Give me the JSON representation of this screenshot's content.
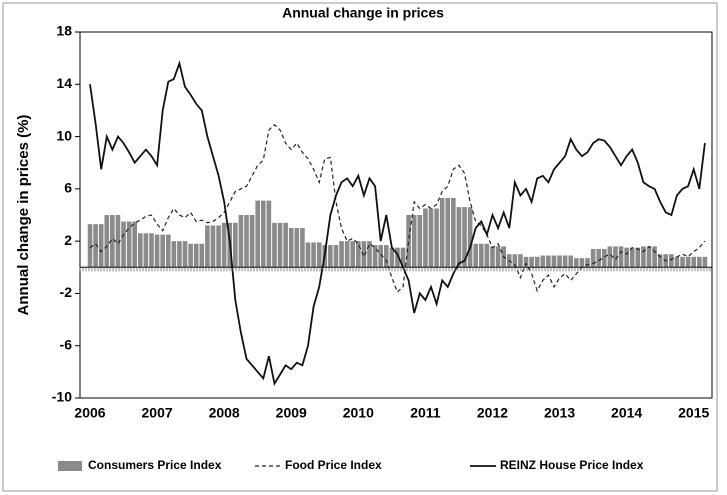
{
  "chart_data": {
    "type": "bar-line",
    "title": "Annual change in prices",
    "ylabel": "Annual change in prices (%)",
    "ylim": [
      -10,
      18
    ],
    "yticks": [
      -10,
      -6,
      -2,
      2,
      6,
      10,
      14,
      18
    ],
    "categories": [
      "2006",
      null,
      null,
      null,
      null,
      null,
      null,
      null,
      null,
      null,
      null,
      null,
      "2007",
      null,
      null,
      null,
      null,
      null,
      null,
      null,
      null,
      null,
      null,
      null,
      "2008",
      null,
      null,
      null,
      null,
      null,
      null,
      null,
      null,
      null,
      null,
      null,
      "2009",
      null,
      null,
      null,
      null,
      null,
      null,
      null,
      null,
      null,
      null,
      null,
      "2010",
      null,
      null,
      null,
      null,
      null,
      null,
      null,
      null,
      null,
      null,
      null,
      "2011",
      null,
      null,
      null,
      null,
      null,
      null,
      null,
      null,
      null,
      null,
      null,
      "2012",
      null,
      null,
      null,
      null,
      null,
      null,
      null,
      null,
      null,
      null,
      null,
      "2013",
      null,
      null,
      null,
      null,
      null,
      null,
      null,
      null,
      null,
      null,
      null,
      "2014",
      null,
      null,
      null,
      null,
      null,
      null,
      null,
      null,
      null,
      null,
      null,
      "2015",
      null,
      null
    ],
    "series": [
      {
        "name": "Consumers Price Index",
        "kind": "bar",
        "color": "#8a8a8a",
        "values": [
          3.3,
          3.3,
          3.3,
          4.0,
          4.0,
          4.0,
          3.5,
          3.5,
          3.5,
          2.6,
          2.6,
          2.6,
          2.5,
          2.5,
          2.5,
          2.0,
          2.0,
          2.0,
          1.8,
          1.8,
          1.8,
          3.2,
          3.2,
          3.2,
          3.4,
          3.4,
          3.4,
          4.0,
          4.0,
          4.0,
          5.1,
          5.1,
          5.1,
          3.4,
          3.4,
          3.4,
          3.0,
          3.0,
          3.0,
          1.9,
          1.9,
          1.9,
          1.7,
          1.7,
          1.7,
          2.0,
          2.0,
          2.0,
          2.0,
          2.0,
          2.0,
          1.7,
          1.7,
          1.7,
          1.5,
          1.5,
          1.5,
          4.0,
          4.0,
          4.0,
          4.5,
          4.5,
          4.5,
          5.3,
          5.3,
          5.3,
          4.6,
          4.6,
          4.6,
          1.8,
          1.8,
          1.8,
          1.6,
          1.6,
          1.6,
          1.0,
          1.0,
          1.0,
          0.8,
          0.8,
          0.8,
          0.9,
          0.9,
          0.9,
          0.9,
          0.9,
          0.9,
          0.7,
          0.7,
          0.7,
          1.4,
          1.4,
          1.4,
          1.6,
          1.6,
          1.6,
          1.5,
          1.5,
          1.5,
          1.6,
          1.6,
          1.6,
          1.0,
          1.0,
          1.0,
          0.8,
          0.8,
          0.8,
          0.8,
          0.8,
          0.8
        ]
      },
      {
        "name": "Food Price Index",
        "kind": "line",
        "dashed": true,
        "color": "#222222",
        "values": [
          1.5,
          1.8,
          1.2,
          1.6,
          2.2,
          1.8,
          2.5,
          3,
          3.4,
          3.6,
          3.9,
          4,
          3.3,
          2.8,
          3.8,
          4.5,
          4,
          3.8,
          4.2,
          3.5,
          3.6,
          3.4,
          3.5,
          3.8,
          4.2,
          5,
          5.8,
          6,
          6.2,
          7,
          7.8,
          8.2,
          10.5,
          10.9,
          10.5,
          9.5,
          9,
          9.5,
          8.8,
          8.3,
          7.5,
          6.5,
          8.3,
          8.4,
          5,
          3,
          2,
          2.2,
          1.8,
          0.8,
          1.8,
          1.5,
          1,
          0.5,
          -0.8,
          -1.9,
          -1.5,
          2,
          5,
          4.5,
          4.8,
          4.5,
          4.8,
          5.8,
          6.2,
          7.5,
          7.8,
          7.2,
          5,
          3.5,
          3.2,
          2.5,
          1.5,
          1.8,
          0.8,
          0.5,
          0.2,
          -0.8,
          0.3,
          -0.5,
          -1.8,
          -1,
          -0.6,
          -1.5,
          -0.8,
          -0.5,
          -1,
          -0.5,
          0,
          0.2,
          0.3,
          0.5,
          0.8,
          1,
          0.6,
          1.2,
          1,
          1.5,
          1.4,
          1.2,
          1.6,
          1.2,
          0.8,
          0.5,
          0.6,
          0.8,
          1,
          0.8,
          1.2,
          1.5,
          2
        ]
      },
      {
        "name": "REINZ House Price Index",
        "kind": "line",
        "dashed": false,
        "color": "#111111",
        "values": [
          14,
          11,
          7.5,
          10,
          9,
          10,
          9.5,
          8.8,
          8,
          8.5,
          9,
          8.5,
          7.8,
          12,
          14.2,
          14.4,
          15.6,
          13.8,
          13.2,
          12.5,
          12,
          10,
          8.5,
          7,
          5,
          2,
          -2.5,
          -5,
          -7,
          -7.5,
          -8,
          -8.5,
          -6.8,
          -8.9,
          -8.2,
          -7.5,
          -7.8,
          -7.3,
          -7.5,
          -6,
          -3,
          -1.5,
          1,
          4,
          5.5,
          6.5,
          6.8,
          6.2,
          7,
          5.5,
          6.8,
          6.2,
          2,
          4,
          1.5,
          1,
          0,
          -1,
          -3.5,
          -2,
          -2.5,
          -1.5,
          -2.8,
          -1,
          -1.5,
          -0.5,
          0.3,
          0.5,
          1.5,
          3,
          3.5,
          2.5,
          4,
          3,
          4.2,
          3,
          6.5,
          5.5,
          6,
          5,
          6.8,
          7,
          6.5,
          7.5,
          8,
          8.5,
          9.8,
          9,
          8.5,
          8.8,
          9.5,
          9.8,
          9.7,
          9.2,
          8.5,
          7.8,
          8.5,
          9,
          8,
          6.5,
          6.2,
          6,
          5,
          4.2,
          4,
          5.5,
          6,
          6.2,
          7.5,
          6,
          9.5
        ]
      }
    ]
  }
}
